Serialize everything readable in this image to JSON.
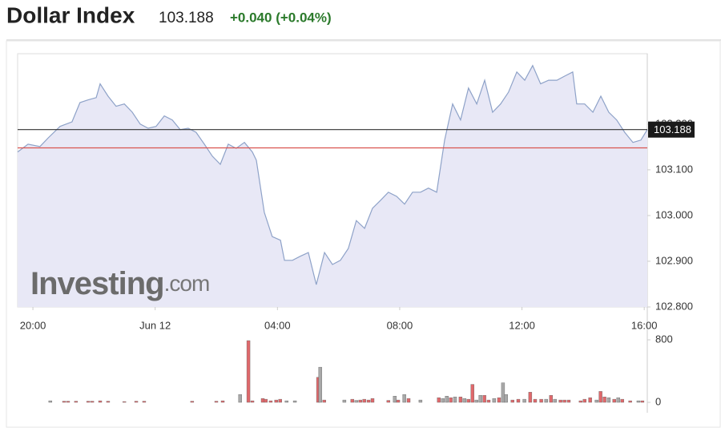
{
  "chart_data": {
    "type": "line",
    "title": "Dollar Index",
    "last_price": 103.188,
    "change": "+0.040 (+0.04%)",
    "watermark": {
      "brand": "Investing",
      "suffix": ".com"
    },
    "line_color": "#8ea2c8",
    "fill_color": "#e8e8f6",
    "reference_lines": [
      {
        "value": 103.148,
        "color": "#d9534f"
      }
    ],
    "xlim": [
      19.5,
      40.1
    ],
    "xticks": [
      {
        "value": 20,
        "label": "20:00"
      },
      {
        "value": 24,
        "label": "Jun 12"
      },
      {
        "value": 28,
        "label": "04:00"
      },
      {
        "value": 32,
        "label": "08:00"
      },
      {
        "value": 36,
        "label": "12:00"
      },
      {
        "value": 40,
        "label": "16:00"
      }
    ],
    "ylim": [
      102.8,
      103.354
    ],
    "yticks": [
      {
        "value": 102.8,
        "label": "102.800"
      },
      {
        "value": 102.9,
        "label": "102.900"
      },
      {
        "value": 103.0,
        "label": "103.000"
      },
      {
        "value": 103.1,
        "label": "103.100"
      },
      {
        "value": 103.2,
        "label": "103.200"
      }
    ],
    "x": [
      19.5,
      19.84,
      20.23,
      20.5,
      20.89,
      21.28,
      21.54,
      21.81,
      22.07,
      22.2,
      22.46,
      22.72,
      22.99,
      23.25,
      23.51,
      23.77,
      24.03,
      24.3,
      24.56,
      24.82,
      25.08,
      25.34,
      25.61,
      25.87,
      26.13,
      26.39,
      26.65,
      26.92,
      27.18,
      27.31,
      27.57,
      27.83,
      28.1,
      28.23,
      28.49,
      28.75,
      29.01,
      29.27,
      29.54,
      29.8,
      30.06,
      30.32,
      30.58,
      30.85,
      31.11,
      31.37,
      31.63,
      31.9,
      32.16,
      32.42,
      32.68,
      32.94,
      33.21,
      33.47,
      33.73,
      33.99,
      34.25,
      34.52,
      34.78,
      35.04,
      35.3,
      35.56,
      35.83,
      36.09,
      36.35,
      36.61,
      36.87,
      37.14,
      37.4,
      37.66,
      37.79,
      38.05,
      38.32,
      38.58,
      38.84,
      39.1,
      39.36,
      39.63,
      39.89,
      40.1
    ],
    "values": [
      103.139,
      103.156,
      103.151,
      103.17,
      103.195,
      103.205,
      103.247,
      103.253,
      103.258,
      103.288,
      103.261,
      103.239,
      103.244,
      103.226,
      103.2,
      103.191,
      103.195,
      103.218,
      103.209,
      103.188,
      103.191,
      103.182,
      103.156,
      103.13,
      103.112,
      103.156,
      103.147,
      103.16,
      103.139,
      103.121,
      103.007,
      102.954,
      102.946,
      102.902,
      102.902,
      102.911,
      102.919,
      102.849,
      102.919,
      102.893,
      102.902,
      102.928,
      102.989,
      102.972,
      103.016,
      103.033,
      103.051,
      103.042,
      103.025,
      103.051,
      103.051,
      103.06,
      103.051,
      103.165,
      103.244,
      103.209,
      103.279,
      103.244,
      103.296,
      103.226,
      103.244,
      103.27,
      103.314,
      103.296,
      103.328,
      103.288,
      103.296,
      103.296,
      103.305,
      103.314,
      103.244,
      103.244,
      103.226,
      103.261,
      103.226,
      103.209,
      103.182,
      103.16,
      103.165,
      103.188
    ],
    "volume": {
      "ylim": [
        0,
        800
      ],
      "yticks": [
        0,
        800
      ],
      "x": [
        20.57,
        21.02,
        21.15,
        21.41,
        21.81,
        21.94,
        22.2,
        22.46,
        22.99,
        23.38,
        23.64,
        25.21,
        26.0,
        26.21,
        26.78,
        27.05,
        27.18,
        27.52,
        27.62,
        27.78,
        27.96,
        28.09,
        28.3,
        28.57,
        29.33,
        29.4,
        29.53,
        30.19,
        30.45,
        30.58,
        30.71,
        30.84,
        30.98,
        31.11,
        31.63,
        31.84,
        31.95,
        32.15,
        32.29,
        32.68,
        33.28,
        33.41,
        33.54,
        33.67,
        33.81,
        33.99,
        34.12,
        34.25,
        34.38,
        34.51,
        34.64,
        34.77,
        34.91,
        35.09,
        35.25,
        35.38,
        35.48,
        35.69,
        35.88,
        36.08,
        36.27,
        36.43,
        36.63,
        36.79,
        36.95,
        37.08,
        37.26,
        37.39,
        37.53,
        37.92,
        38.05,
        38.23,
        38.44,
        38.57,
        38.7,
        38.84,
        39.02,
        39.15,
        39.28,
        39.54,
        39.81,
        39.94
      ],
      "values": [
        20,
        15,
        15,
        15,
        15,
        15,
        20,
        15,
        10,
        15,
        15,
        15,
        15,
        20,
        100,
        790,
        20,
        50,
        40,
        20,
        30,
        40,
        20,
        20,
        320,
        450,
        30,
        30,
        40,
        25,
        30,
        40,
        30,
        50,
        25,
        80,
        30,
        100,
        50,
        30,
        60,
        50,
        80,
        60,
        70,
        70,
        50,
        40,
        230,
        30,
        90,
        90,
        30,
        50,
        60,
        250,
        100,
        30,
        40,
        40,
        130,
        40,
        40,
        40,
        90,
        40,
        30,
        30,
        30,
        20,
        40,
        60,
        30,
        140,
        70,
        60,
        40,
        60,
        40,
        20,
        20,
        20
      ],
      "colors": [
        "#a8a8a8",
        "#e0686b",
        "#e0686b",
        "#e0686b",
        "#e0686b",
        "#e0686b",
        "#e0686b",
        "#e0686b",
        "#e0686b",
        "#e0686b",
        "#e0686b",
        "#e0686b",
        "#e0686b",
        "#e0686b",
        "#a8a8a8",
        "#e0686b",
        "#e0686b",
        "#e0686b",
        "#e0686b",
        "#e0686b",
        "#e0686b",
        "#e0686b",
        "#a8a8a8",
        "#a8a8a8",
        "#e0686b",
        "#a8a8a8",
        "#e0686b",
        "#a8a8a8",
        "#e0686b",
        "#a8a8a8",
        "#e0686b",
        "#e0686b",
        "#e0686b",
        "#e0686b",
        "#e0686b",
        "#a8a8a8",
        "#e0686b",
        "#a8a8a8",
        "#e0686b",
        "#a8a8a8",
        "#e0686b",
        "#a8a8a8",
        "#a8a8a8",
        "#e0686b",
        "#a8a8a8",
        "#e0686b",
        "#a8a8a8",
        "#e0686b",
        "#e0686b",
        "#a8a8a8",
        "#a8a8a8",
        "#e0686b",
        "#e0686b",
        "#a8a8a8",
        "#e0686b",
        "#a8a8a8",
        "#a8a8a8",
        "#e0686b",
        "#e0686b",
        "#a8a8a8",
        "#e0686b",
        "#e0686b",
        "#e0686b",
        "#a8a8a8",
        "#e0686b",
        "#a8a8a8",
        "#e0686b",
        "#e0686b",
        "#e0686b",
        "#e0686b",
        "#e0686b",
        "#e0686b",
        "#a8a8a8",
        "#e0686b",
        "#e0686b",
        "#a8a8a8",
        "#e0686b",
        "#a8a8a8",
        "#e0686b",
        "#e0686b",
        "#a8a8a8",
        "#e0686b"
      ]
    }
  }
}
